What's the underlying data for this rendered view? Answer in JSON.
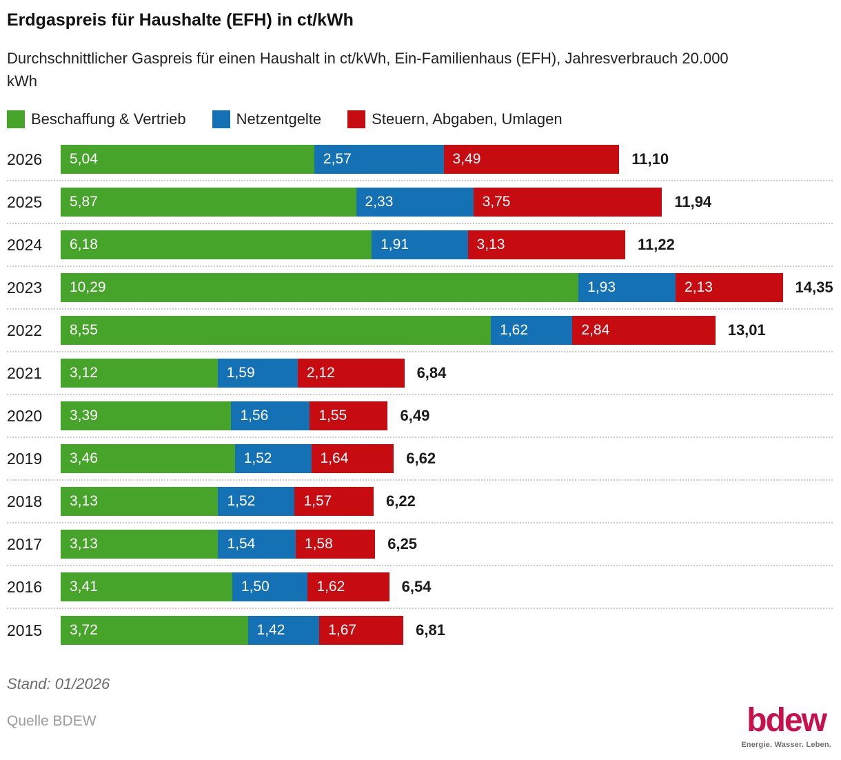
{
  "title": "Erdgaspreis für Haushalte (EFH) in ct/kWh",
  "subtitle": "Durchschnittlicher Gaspreis für einen Haushalt in ct/kWh, Ein-Familienhaus (EFH), Jahresverbrauch 20.000\nkWh",
  "chart_data": {
    "type": "bar",
    "orientation": "horizontal",
    "stacked": true,
    "unit": "ct/kWh",
    "decimal_separator": ",",
    "grid": false,
    "legend_position": "top",
    "xlim": [
      0,
      14.35
    ],
    "categories": [
      "2026",
      "2025",
      "2024",
      "2023",
      "2022",
      "2021",
      "2020",
      "2019",
      "2018",
      "2017",
      "2016",
      "2015"
    ],
    "series": [
      {
        "key": "beschaffung-vertrieb",
        "name": "Beschaffung & Vertrieb",
        "color": "#47a42b",
        "values": [
          5.04,
          5.87,
          6.18,
          10.29,
          8.55,
          3.12,
          3.39,
          3.46,
          3.13,
          3.13,
          3.41,
          3.72
        ]
      },
      {
        "key": "netzentgelte",
        "name": "Netzentgelte",
        "color": "#1371b4",
        "values": [
          2.57,
          2.33,
          1.91,
          1.93,
          1.62,
          1.59,
          1.56,
          1.52,
          1.52,
          1.54,
          1.5,
          1.42
        ]
      },
      {
        "key": "steuern-abgaben-umlagen",
        "name": "Steuern, Abgaben, Umlagen",
        "color": "#c60c11",
        "values": [
          3.49,
          3.75,
          3.13,
          2.13,
          2.84,
          2.12,
          1.55,
          1.64,
          1.57,
          1.58,
          1.62,
          1.67
        ]
      }
    ],
    "totals": [
      "11,10",
      "11,94",
      "11,22",
      "14,35",
      "13,01",
      "6,84",
      "6,49",
      "6,62",
      "6,22",
      "6,25",
      "6,54",
      "6,81"
    ]
  },
  "footer": {
    "stand": "Stand: 01/2026",
    "source": "Quelle BDEW"
  },
  "logo": {
    "text": "bdew",
    "tagline": "Energie. Wasser. Leben.",
    "color": "#c8104b"
  }
}
